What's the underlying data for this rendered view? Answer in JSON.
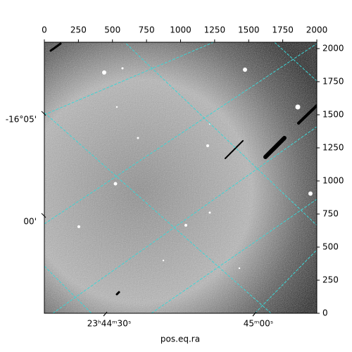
{
  "chart_data": {
    "type": "image",
    "xlabel": "pos.eq.ra",
    "xlim": [
      0,
      2000
    ],
    "ylim": [
      0,
      2048
    ],
    "xticks": [
      0,
      250,
      500,
      750,
      1000,
      1250,
      1500,
      1750,
      2000
    ],
    "yticks": [
      0,
      250,
      500,
      750,
      1000,
      1250,
      1500,
      1750,
      2000
    ],
    "ra_labels": [
      "23ʰ44ᵐ30ˢ",
      "45ᵐ00ˢ"
    ],
    "dec_labels": [
      "-16°05'",
      "00'"
    ]
  }
}
